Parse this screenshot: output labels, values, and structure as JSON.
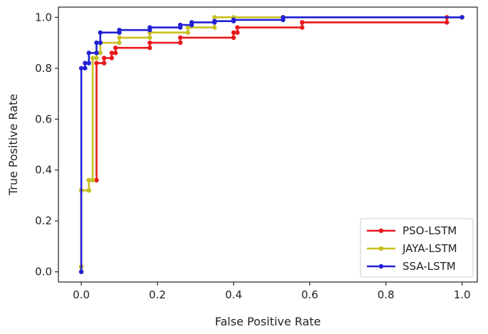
{
  "chart_data": {
    "type": "line",
    "title": "",
    "xlabel": "False Positive Rate",
    "ylabel": "True Positive Rate",
    "xlim": [
      -0.06,
      1.04
    ],
    "ylim": [
      -0.04,
      1.04
    ],
    "xticks": [
      0.0,
      0.2,
      0.4,
      0.6,
      0.8,
      1.0
    ],
    "xtick_labels": [
      "0.0",
      "0.2",
      "0.4",
      "0.6",
      "0.8",
      "1.0"
    ],
    "yticks": [
      0.0,
      0.2,
      0.4,
      0.6,
      0.8,
      1.0
    ],
    "ytick_labels": [
      "0.0",
      "0.2",
      "0.4",
      "0.6",
      "0.8",
      "1.0"
    ],
    "legend_position": "lower-right",
    "series": [
      {
        "name": "PSO-LSTM",
        "color": "#e8191b",
        "x": [
          0.0,
          0.0,
          0.0,
          0.02,
          0.02,
          0.04,
          0.04,
          0.06,
          0.06,
          0.08,
          0.08,
          0.09,
          0.09,
          0.18,
          0.18,
          0.26,
          0.26,
          0.4,
          0.4,
          0.41,
          0.41,
          0.58,
          0.58,
          0.96,
          0.96,
          1.0
        ],
        "y": [
          0.0,
          0.02,
          0.32,
          0.32,
          0.36,
          0.36,
          0.82,
          0.82,
          0.84,
          0.84,
          0.86,
          0.86,
          0.88,
          0.88,
          0.9,
          0.9,
          0.92,
          0.92,
          0.94,
          0.94,
          0.96,
          0.96,
          0.98,
          0.98,
          1.0,
          1.0
        ]
      },
      {
        "name": "JAYA-LSTM",
        "color": "#c8c020",
        "x": [
          0.0,
          0.0,
          0.0,
          0.02,
          0.02,
          0.03,
          0.03,
          0.04,
          0.04,
          0.05,
          0.05,
          0.1,
          0.1,
          0.18,
          0.18,
          0.28,
          0.28,
          0.35,
          0.35,
          0.4,
          0.53,
          0.53,
          1.0
        ],
        "y": [
          0.0,
          0.02,
          0.32,
          0.32,
          0.36,
          0.36,
          0.84,
          0.84,
          0.86,
          0.86,
          0.9,
          0.9,
          0.92,
          0.92,
          0.94,
          0.94,
          0.96,
          0.96,
          1.0,
          1.0,
          1.0,
          1.0,
          1.0
        ]
      },
      {
        "name": "SSA-LSTM",
        "color": "#2121d6",
        "x": [
          0.0,
          0.0,
          0.01,
          0.01,
          0.02,
          0.02,
          0.04,
          0.04,
          0.05,
          0.05,
          0.1,
          0.1,
          0.18,
          0.18,
          0.26,
          0.26,
          0.29,
          0.29,
          0.35,
          0.35,
          0.4,
          0.4,
          0.53,
          0.53,
          1.0
        ],
        "y": [
          0.0,
          0.8,
          0.8,
          0.82,
          0.82,
          0.86,
          0.86,
          0.9,
          0.9,
          0.94,
          0.94,
          0.95,
          0.95,
          0.96,
          0.96,
          0.97,
          0.97,
          0.98,
          0.98,
          0.985,
          0.985,
          0.99,
          0.99,
          1.0,
          1.0
        ]
      }
    ]
  }
}
